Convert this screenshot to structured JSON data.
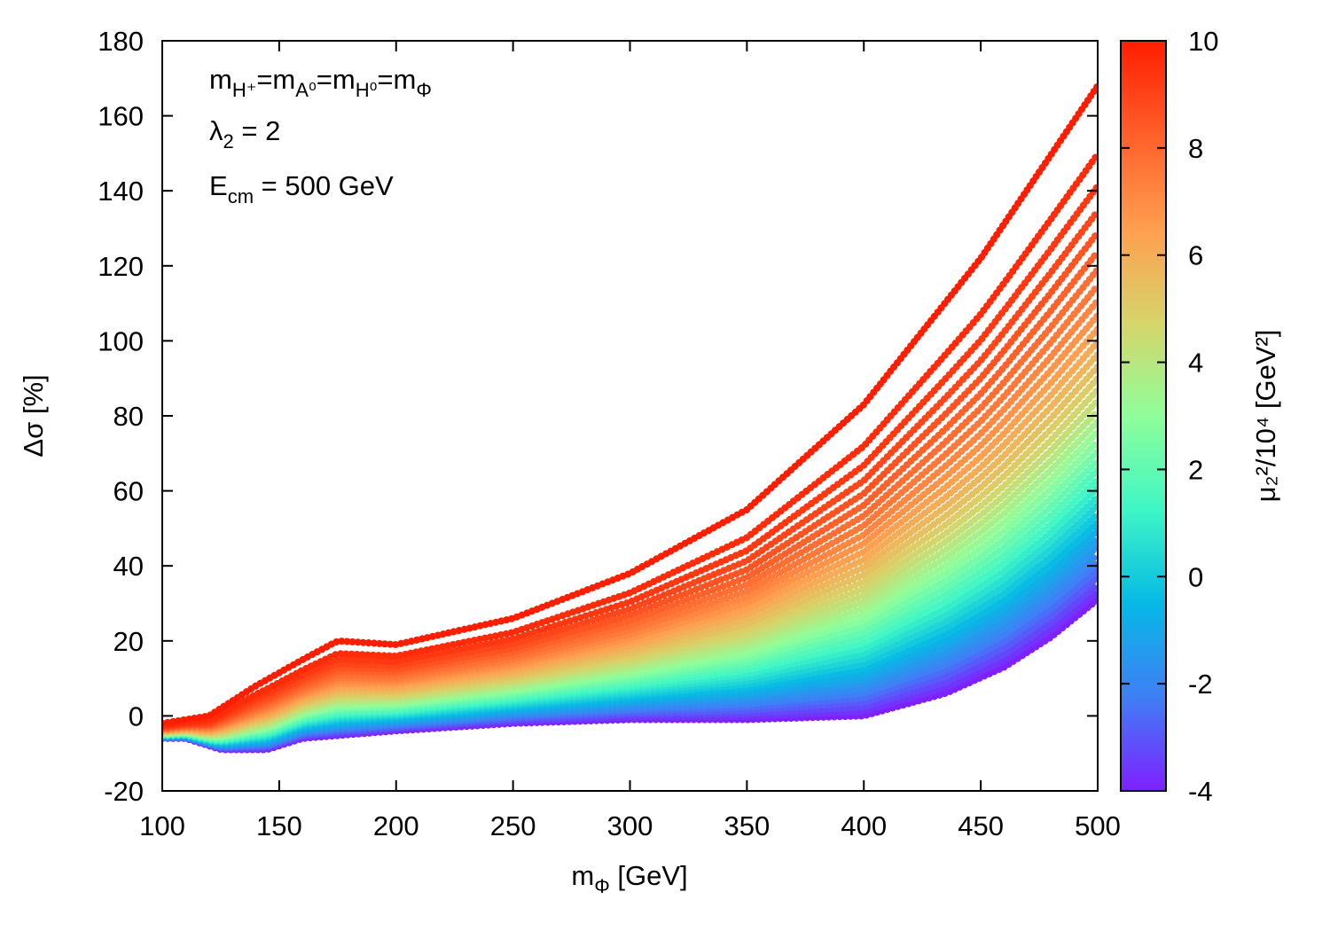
{
  "chart_data": {
    "type": "scatter",
    "title": "",
    "xlabel": {
      "main": "m",
      "sub": "Φ",
      "unit": " [GeV]"
    },
    "ylabel": "Δσ [%]",
    "xlim": [
      100,
      500
    ],
    "ylim": [
      -20,
      180
    ],
    "xticks": [
      100,
      150,
      200,
      250,
      300,
      350,
      400,
      450,
      500
    ],
    "yticks": [
      -20,
      0,
      20,
      40,
      60,
      80,
      100,
      120,
      140,
      160,
      180
    ],
    "grid": false,
    "legend": "none",
    "annotations": {
      "line1": {
        "m1": "m",
        "s1": "H⁺",
        "eq1": "=m",
        "s2": "A⁰",
        "eq2": "=m",
        "s3": "H⁰",
        "eq3": "=m",
        "s4": "Φ"
      },
      "line2": {
        "lam": "λ",
        "sub": "2",
        "rest": " = 2"
      },
      "line3": {
        "e": "E",
        "sub": "cm",
        "rest": " = 500 GeV"
      }
    },
    "colorbar": {
      "label": "μ₂²/10⁴ [GeV²]",
      "range": [
        -4,
        10
      ],
      "ticks": [
        -4,
        -2,
        0,
        2,
        4,
        6,
        8,
        10
      ],
      "colors": [
        "#7f20ff",
        "#3f7ff5",
        "#06b9e6",
        "#3ef6c6",
        "#8ffe9a",
        "#d7d46a",
        "#ff9e4f",
        "#ff5f2a",
        "#ff1d00"
      ]
    },
    "series_description": "Band of curves, one per mu2^2 value from -4e4 to 10e4 GeV^2; upper envelope (mu2^2=-4e4) and lower envelope (mu2^2=10e4) sampled below",
    "upper_envelope": {
      "x": [
        100,
        120,
        140,
        160,
        175,
        200,
        250,
        300,
        350,
        400,
        450,
        500
      ],
      "y": [
        -2,
        0,
        8,
        15,
        20,
        19,
        26,
        38,
        55,
        83,
        122,
        168
      ]
    },
    "lower_envelope": {
      "x": [
        100,
        110,
        125,
        145,
        160,
        200,
        250,
        300,
        350,
        400,
        435,
        460,
        480,
        500
      ],
      "y": [
        -6,
        -6,
        -9,
        -9,
        -6,
        -4,
        -2,
        -1,
        -1,
        0,
        6,
        13,
        21,
        31
      ]
    }
  }
}
